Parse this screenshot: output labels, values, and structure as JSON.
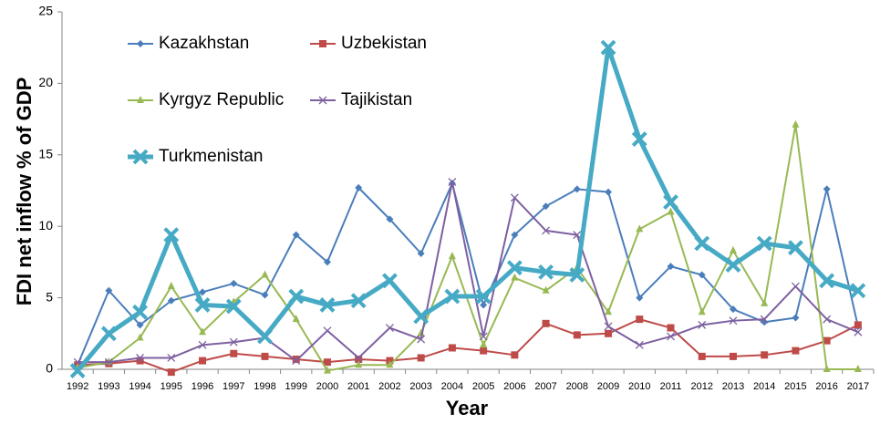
{
  "chart_data": {
    "type": "line",
    "xlabel": "Year",
    "ylabel": "FDI net inflow % of GDP",
    "categories": [
      "1992",
      "1993",
      "1994",
      "1995",
      "1996",
      "1997",
      "1998",
      "1999",
      "2000",
      "2001",
      "2002",
      "2003",
      "2004",
      "2005",
      "2006",
      "2007",
      "2008",
      "2009",
      "2010",
      "2011",
      "2012",
      "2013",
      "2014",
      "2015",
      "2016",
      "2017"
    ],
    "ylim": [
      0,
      25
    ],
    "yticks": [
      0,
      5,
      10,
      15,
      20,
      25
    ],
    "grid": false,
    "series": [
      {
        "name": "Kazakhstan",
        "color": "#4a7ebb",
        "marker": "diamond",
        "values": [
          0.3,
          5.5,
          3.1,
          4.8,
          5.4,
          6.0,
          5.2,
          9.4,
          7.5,
          12.7,
          10.5,
          8.1,
          13.0,
          4.5,
          9.4,
          11.4,
          12.6,
          12.4,
          5.0,
          7.2,
          6.6,
          4.2,
          3.3,
          3.6,
          12.6,
          3.0
        ]
      },
      {
        "name": "Uzbekistan",
        "color": "#be4b48",
        "marker": "square",
        "values": [
          0.3,
          0.4,
          0.6,
          -0.2,
          0.6,
          1.1,
          0.9,
          0.7,
          0.5,
          0.7,
          0.6,
          0.8,
          1.5,
          1.3,
          1.0,
          3.2,
          2.4,
          2.5,
          3.5,
          2.9,
          0.9,
          0.9,
          1.0,
          1.3,
          2.0,
          3.1
        ]
      },
      {
        "name": "Kyrgyz Republic",
        "color": "#98b954",
        "marker": "triangle",
        "values": [
          0.1,
          0.5,
          2.2,
          5.8,
          2.6,
          4.7,
          6.6,
          3.5,
          -0.1,
          0.3,
          0.3,
          2.5,
          7.9,
          1.7,
          6.4,
          5.5,
          7.1,
          4.0,
          9.8,
          11.0,
          4.0,
          8.3,
          4.6,
          17.1,
          0.0,
          0.0
        ]
      },
      {
        "name": "Tajikistan",
        "color": "#7d60a0",
        "marker": "x",
        "values": [
          0.5,
          0.5,
          0.8,
          0.8,
          1.7,
          1.9,
          2.2,
          0.6,
          2.7,
          0.8,
          2.9,
          2.1,
          13.1,
          2.3,
          12.0,
          9.7,
          9.4,
          3.0,
          1.7,
          2.3,
          3.1,
          3.4,
          3.5,
          5.8,
          3.5,
          2.6
        ]
      },
      {
        "name": "Turkmenistan",
        "color": "#46aac5",
        "marker": "bigx",
        "values": [
          -0.1,
          2.5,
          4.0,
          9.4,
          4.5,
          4.4,
          2.3,
          5.1,
          4.5,
          4.8,
          6.2,
          3.7,
          5.1,
          5.1,
          7.1,
          6.8,
          6.6,
          22.5,
          16.1,
          11.7,
          8.8,
          7.3,
          8.8,
          8.5,
          6.2,
          5.5
        ]
      }
    ]
  }
}
